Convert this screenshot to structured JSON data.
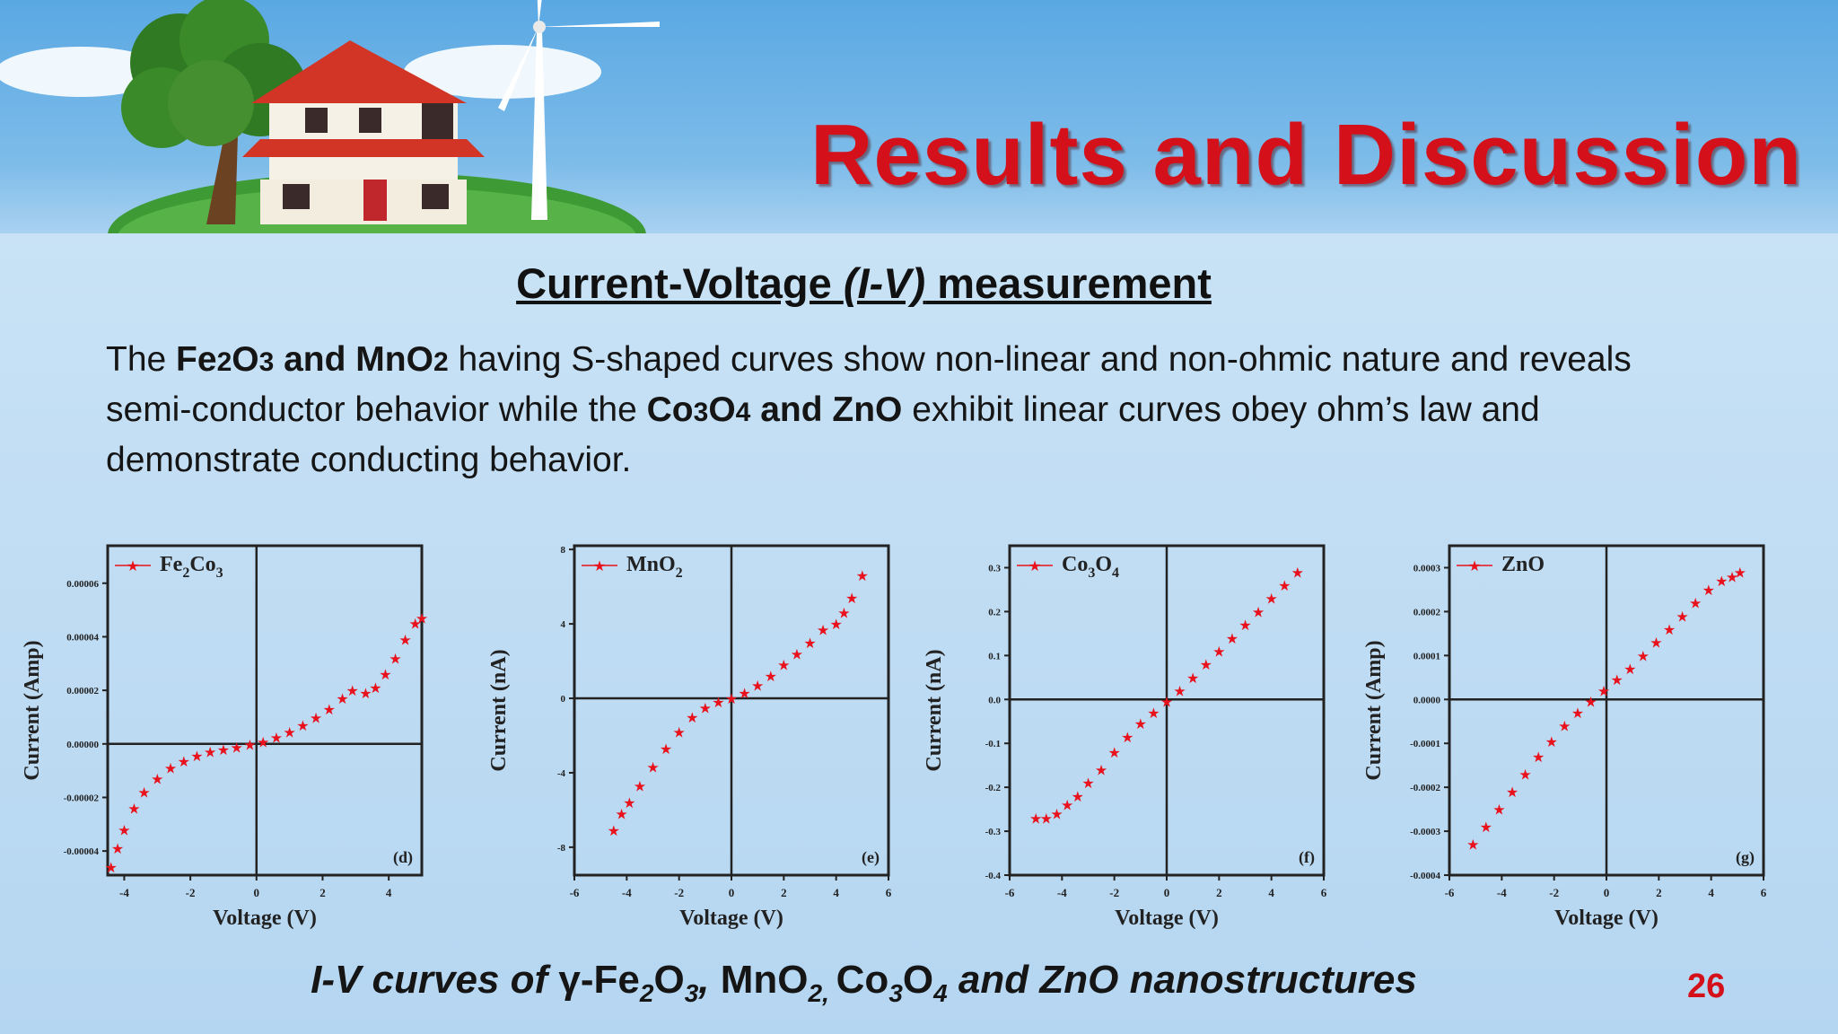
{
  "slide": {
    "title": "Results and Discussion",
    "heading_prefix": "Current-Voltage ",
    "heading_italic": "(I-V)",
    "heading_suffix": " measurement",
    "body": {
      "t1": "The ",
      "b1a": "Fe",
      "b1b": "2",
      "b1c": "O",
      "b1d": "3",
      "b1e": " and MnO",
      "b1f": "2",
      "t2": " having S-shaped curves show non-linear and non-ohmic nature and reveals semi-conductor behavior while the ",
      "b2a": "Co",
      "b2b": "3",
      "b2c": "O",
      "b2d": "4",
      "b2e": " and ZnO",
      "t3": " exhibit linear curves obey ohm’s law and demonstrate conducting behavior."
    },
    "caption": {
      "c1": "I-V curves of ",
      "c2": "γ-Fe",
      "c3": "2",
      "c4": "O",
      "c5": "3",
      "c6": ", ",
      "c7": "MnO",
      "c8": "2, ",
      "c9": "Co",
      "c10": "3",
      "c11": "O",
      "c12": "4",
      "c13": " and ZnO nanostructures"
    },
    "page_number": "26"
  },
  "colors": {
    "title": "#d4101a",
    "series": "#e8111c",
    "sky": "#5aa8e3"
  },
  "icons": [
    "house-illustration",
    "tree-illustration",
    "wind-turbine-illustration"
  ],
  "chart_data": [
    {
      "type": "scatter",
      "panel_tag": "(d)",
      "legend_name": "Fe2Co3",
      "legend_base": "Fe",
      "legend_sub1": "2",
      "legend_mid": "Co",
      "legend_sub2": "3",
      "xlabel": "Voltage (V)",
      "ylabel": "Current (Amp)",
      "xlim": [
        -4.5,
        5.0
      ],
      "ylim": [
        -4.9e-05,
        7.4e-05
      ],
      "xticks": [
        -4,
        -2,
        0,
        2,
        4
      ],
      "xtick_labels": [
        "-4",
        "-2",
        "0",
        "2",
        "4"
      ],
      "yticks": [
        -4e-05,
        -2e-05,
        0.0,
        2e-05,
        4e-05,
        6e-05
      ],
      "ytick_labels": [
        "-0.00004",
        "-0.00002",
        "0.00000",
        "0.00002",
        "0.00004",
        "0.00006"
      ],
      "series": [
        {
          "name": "Fe2Co3",
          "x": [
            -4.4,
            -4.2,
            -4.0,
            -3.7,
            -3.4,
            -3.0,
            -2.6,
            -2.2,
            -1.8,
            -1.4,
            -1.0,
            -0.6,
            -0.2,
            0.2,
            0.6,
            1.0,
            1.4,
            1.8,
            2.2,
            2.6,
            2.9,
            3.3,
            3.6,
            3.9,
            4.2,
            4.5,
            4.8,
            5.0
          ],
          "y": [
            -4.6e-05,
            -3.9e-05,
            -3.2e-05,
            -2.4e-05,
            -1.8e-05,
            -1.3e-05,
            -9e-06,
            -6.5e-06,
            -4.5e-06,
            -3e-06,
            -2e-06,
            -1.2e-06,
            -3e-07,
            8e-07,
            2.4e-06,
            4.5e-06,
            7e-06,
            9.8e-06,
            1.3e-05,
            1.7e-05,
            2e-05,
            1.9e-05,
            2.1e-05,
            2.6e-05,
            3.2e-05,
            3.9e-05,
            4.5e-05,
            4.7e-05
          ]
        }
      ]
    },
    {
      "type": "scatter",
      "panel_tag": "(e)",
      "legend_name": "MnO2",
      "legend_base": "MnO",
      "legend_sub1": "2",
      "legend_mid": "",
      "legend_sub2": "",
      "xlabel": "Voltage (V)",
      "ylabel": "Current (nA)",
      "xlim": [
        -6,
        6
      ],
      "ylim": [
        -9.5,
        8.2
      ],
      "xticks": [
        -6,
        -4,
        -2,
        0,
        2,
        4,
        6
      ],
      "xtick_labels": [
        "-6",
        "-4",
        "-2",
        "0",
        "2",
        "4",
        "6"
      ],
      "yticks": [
        -8,
        -4,
        0,
        4,
        8
      ],
      "ytick_labels": [
        "-8",
        "-4",
        "0",
        "4",
        "8"
      ],
      "series": [
        {
          "name": "MnO2",
          "x": [
            -4.5,
            -4.2,
            -3.9,
            -3.5,
            -3.0,
            -2.5,
            -2.0,
            -1.5,
            -1.0,
            -0.5,
            0.0,
            0.5,
            1.0,
            1.5,
            2.0,
            2.5,
            3.0,
            3.5,
            4.0,
            4.3,
            4.6,
            5.0
          ],
          "y": [
            -7.1,
            -6.2,
            -5.6,
            -4.7,
            -3.7,
            -2.7,
            -1.8,
            -1.0,
            -0.5,
            -0.2,
            0.0,
            0.3,
            0.7,
            1.2,
            1.8,
            2.4,
            3.0,
            3.7,
            4.0,
            4.6,
            5.4,
            6.6
          ]
        }
      ]
    },
    {
      "type": "scatter",
      "panel_tag": "(f)",
      "legend_name": "Co3O4",
      "legend_base": "Co",
      "legend_sub1": "3",
      "legend_mid": "O",
      "legend_sub2": "4",
      "xlabel": "Voltage (V)",
      "ylabel": "Current (nA)",
      "xlim": [
        -6,
        6
      ],
      "ylim": [
        -0.4,
        0.35
      ],
      "xticks": [
        -6,
        -4,
        -2,
        0,
        2,
        4,
        6
      ],
      "xtick_labels": [
        "-6",
        "-4",
        "-2",
        "0",
        "2",
        "4",
        "6"
      ],
      "yticks": [
        -0.4,
        -0.3,
        -0.2,
        -0.1,
        0.0,
        0.1,
        0.2,
        0.3
      ],
      "ytick_labels": [
        "-0.4",
        "-0.3",
        "-0.2",
        "-0.1",
        "0.0",
        "0.1",
        "0.2",
        "0.3"
      ],
      "series": [
        {
          "name": "Co3O4",
          "x": [
            -5.0,
            -4.6,
            -4.2,
            -3.8,
            -3.4,
            -3.0,
            -2.5,
            -2.0,
            -1.5,
            -1.0,
            -0.5,
            0.0,
            0.5,
            1.0,
            1.5,
            2.0,
            2.5,
            3.0,
            3.5,
            4.0,
            4.5,
            5.0
          ],
          "y": [
            -0.27,
            -0.27,
            -0.26,
            -0.24,
            -0.22,
            -0.19,
            -0.16,
            -0.12,
            -0.085,
            -0.055,
            -0.03,
            -0.005,
            0.02,
            0.05,
            0.08,
            0.11,
            0.14,
            0.17,
            0.2,
            0.23,
            0.26,
            0.29
          ]
        }
      ]
    },
    {
      "type": "scatter",
      "panel_tag": "(g)",
      "legend_name": "ZnO",
      "legend_base": "ZnO",
      "legend_sub1": "",
      "legend_mid": "",
      "legend_sub2": "",
      "xlabel": "Voltage (V)",
      "ylabel": "Current (Amp)",
      "xlim": [
        -6,
        6
      ],
      "ylim": [
        -0.0004,
        0.00035
      ],
      "xticks": [
        -6,
        -4,
        -2,
        0,
        2,
        4,
        6
      ],
      "xtick_labels": [
        "-6",
        "-4",
        "-2",
        "0",
        "2",
        "4",
        "6"
      ],
      "yticks": [
        -0.0004,
        -0.0003,
        -0.0002,
        -0.0001,
        0.0,
        0.0001,
        0.0002,
        0.0003
      ],
      "ytick_labels": [
        "-0.0004",
        "-0.0003",
        "-0.0002",
        "-0.0001",
        "0.0000",
        "0.0001",
        "0.0002",
        "0.0003"
      ],
      "series": [
        {
          "name": "ZnO",
          "x": [
            -5.1,
            -4.6,
            -4.1,
            -3.6,
            -3.1,
            -2.6,
            -2.1,
            -1.6,
            -1.1,
            -0.6,
            -0.1,
            0.4,
            0.9,
            1.4,
            1.9,
            2.4,
            2.9,
            3.4,
            3.9,
            4.4,
            4.8,
            5.1
          ],
          "y": [
            -0.00033,
            -0.00029,
            -0.00025,
            -0.00021,
            -0.00017,
            -0.00013,
            -9.5e-05,
            -6e-05,
            -3e-05,
            -5e-06,
            2e-05,
            4.5e-05,
            7e-05,
            0.0001,
            0.00013,
            0.00016,
            0.00019,
            0.00022,
            0.00025,
            0.00027,
            0.00028,
            0.00029
          ]
        }
      ]
    }
  ]
}
